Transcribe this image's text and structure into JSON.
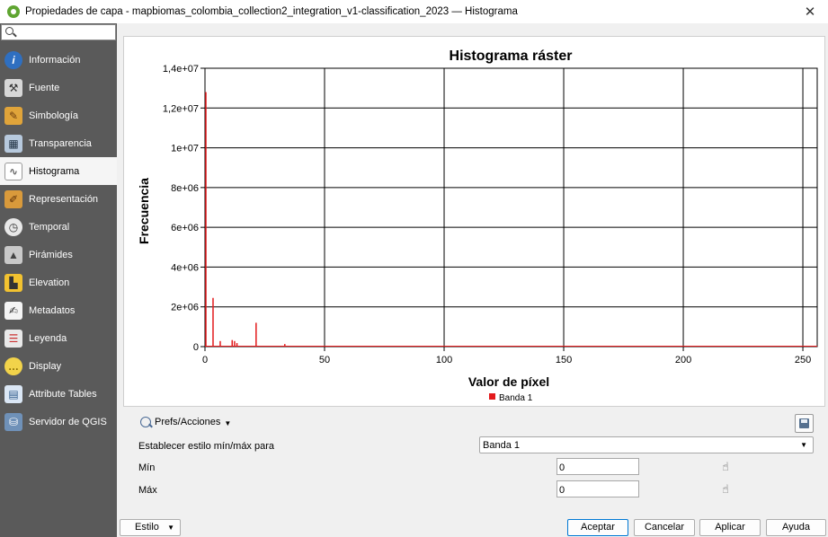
{
  "window": {
    "title": "Propiedades de capa - mapbiomas_colombia_collection2_integration_v1-classification_2023 — Histograma",
    "close_glyph": "✕"
  },
  "sidebar": {
    "search_placeholder": "",
    "items": [
      {
        "label": "Información",
        "icon": "info-icon"
      },
      {
        "label": "Fuente",
        "icon": "source-tools-icon"
      },
      {
        "label": "Simbología",
        "icon": "paintbrush-icon"
      },
      {
        "label": "Transparencia",
        "icon": "transparency-icon"
      },
      {
        "label": "Histograma",
        "icon": "histogram-icon"
      },
      {
        "label": "Representación",
        "icon": "rendering-brush-icon"
      },
      {
        "label": "Temporal",
        "icon": "clock-icon"
      },
      {
        "label": "Pirámides",
        "icon": "pyramids-icon"
      },
      {
        "label": "Elevation",
        "icon": "elevation-icon"
      },
      {
        "label": "Metadatos",
        "icon": "metadata-icon"
      },
      {
        "label": "Leyenda",
        "icon": "legend-icon"
      },
      {
        "label": "Display",
        "icon": "display-bubble-icon"
      },
      {
        "label": "Attribute Tables",
        "icon": "attribute-table-icon"
      },
      {
        "label": "Servidor de QGIS",
        "icon": "server-icon"
      }
    ],
    "active_index": 4
  },
  "chart_data": {
    "type": "bar",
    "title": "Histograma ráster",
    "xlabel": "Valor de píxel",
    "ylabel": "Frecuencia",
    "xlim": [
      0,
      256
    ],
    "ylim": [
      0,
      14000000
    ],
    "x_ticks": [
      "0",
      "50",
      "100",
      "150",
      "200",
      "250"
    ],
    "y_ticks": [
      "0",
      "2e+06",
      "4e+06",
      "6e+06",
      "8e+06",
      "1e+07",
      "1,2e+07",
      "1,4e+07"
    ],
    "grid": true,
    "legend_position": "bottom-center",
    "series": [
      {
        "name": "Banda 1",
        "color": "#e31a1c",
        "x": [
          0,
          3,
          6,
          11,
          12,
          13,
          21,
          33
        ],
        "values": [
          12800000,
          2450000,
          280000,
          330000,
          280000,
          180000,
          1200000,
          130000
        ]
      }
    ]
  },
  "controls": {
    "prefs_label": "Prefs/Acciones",
    "minmax_label": "Establecer estilo mín/máx para",
    "band_selected": "Banda 1",
    "min_label": "Mín",
    "min_value": "0",
    "max_label": "Máx",
    "max_value": "0"
  },
  "buttons": {
    "estilo": "Estilo",
    "aceptar": "Aceptar",
    "cancelar": "Cancelar",
    "aplicar": "Aplicar",
    "ayuda": "Ayuda"
  }
}
